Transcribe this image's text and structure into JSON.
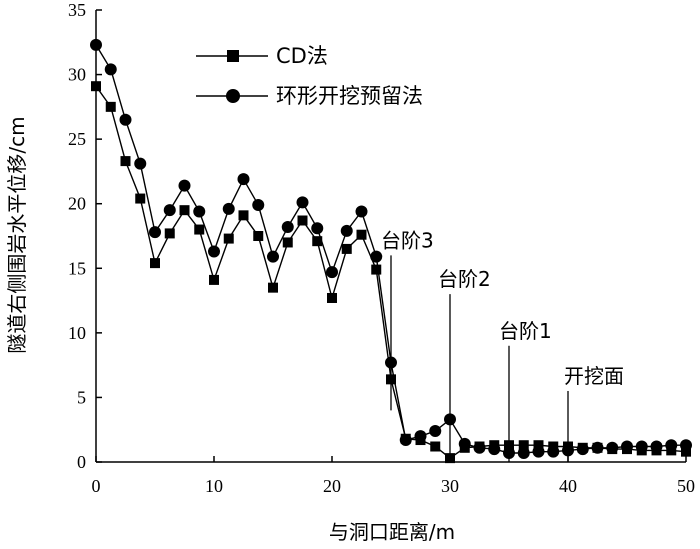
{
  "chart_data": {
    "type": "line",
    "title": "",
    "xlabel": "与洞口距离/m",
    "ylabel": "隧道右侧围岩水平位移/cm",
    "xlim": [
      0,
      50
    ],
    "ylim": [
      0,
      35
    ],
    "x_ticks": [
      0,
      10,
      20,
      30,
      40,
      50
    ],
    "y_ticks": [
      0,
      5,
      10,
      15,
      20,
      25,
      30,
      35
    ],
    "grid": false,
    "legend_position": "top-left",
    "series": [
      {
        "name": "CD法",
        "marker": "square",
        "color": "#000000",
        "x": [
          0,
          1.25,
          2.5,
          3.75,
          5,
          6.25,
          7.5,
          8.75,
          10,
          11.25,
          12.5,
          13.75,
          15,
          16.25,
          17.5,
          18.75,
          20,
          21.25,
          22.5,
          23.75,
          25,
          26.25,
          27.5,
          28.75,
          30,
          31.25,
          32.5,
          33.75,
          35,
          36.25,
          37.5,
          38.75,
          40,
          41.25,
          42.5,
          43.75,
          45,
          46.25,
          47.5,
          48.75,
          50
        ],
        "values": [
          29.1,
          27.5,
          23.3,
          20.4,
          15.4,
          17.7,
          19.5,
          18.0,
          14.1,
          17.3,
          19.1,
          17.5,
          13.5,
          17.0,
          18.7,
          17.1,
          12.7,
          16.5,
          17.6,
          14.9,
          6.4,
          1.8,
          1.7,
          1.2,
          0.3,
          1.1,
          1.2,
          1.3,
          1.3,
          1.3,
          1.3,
          1.2,
          1.2,
          1.1,
          1.1,
          1.0,
          1.0,
          0.9,
          0.9,
          0.9,
          0.8
        ]
      },
      {
        "name": "环形开挖预留法",
        "marker": "circle",
        "color": "#000000",
        "x": [
          0,
          1.25,
          2.5,
          3.75,
          5,
          6.25,
          7.5,
          8.75,
          10,
          11.25,
          12.5,
          13.75,
          15,
          16.25,
          17.5,
          18.75,
          20,
          21.25,
          22.5,
          23.75,
          25,
          26.25,
          27.5,
          28.75,
          30,
          31.25,
          32.5,
          33.75,
          35,
          36.25,
          37.5,
          38.75,
          40,
          41.25,
          42.5,
          43.75,
          45,
          46.25,
          47.5,
          48.75,
          50
        ],
        "values": [
          32.3,
          30.4,
          26.5,
          23.1,
          17.8,
          19.5,
          21.4,
          19.4,
          16.3,
          19.6,
          21.9,
          19.9,
          15.9,
          18.2,
          20.1,
          18.1,
          14.7,
          17.9,
          19.4,
          15.9,
          7.7,
          1.7,
          2.0,
          2.4,
          3.3,
          1.4,
          1.1,
          1.0,
          0.7,
          0.7,
          0.8,
          0.8,
          0.9,
          1.0,
          1.1,
          1.1,
          1.2,
          1.2,
          1.2,
          1.3,
          1.3
        ]
      }
    ],
    "annotations": [
      {
        "text": "台阶3",
        "x": 25,
        "line_from": 4,
        "line_to": 16
      },
      {
        "text": "台阶2",
        "x": 30,
        "line_from": 0,
        "line_to": 13
      },
      {
        "text": "台阶1",
        "x": 35,
        "line_from": 0,
        "line_to": 9
      },
      {
        "text": "开挖面",
        "x": 40,
        "line_from": 0,
        "line_to": 5.5
      }
    ]
  }
}
